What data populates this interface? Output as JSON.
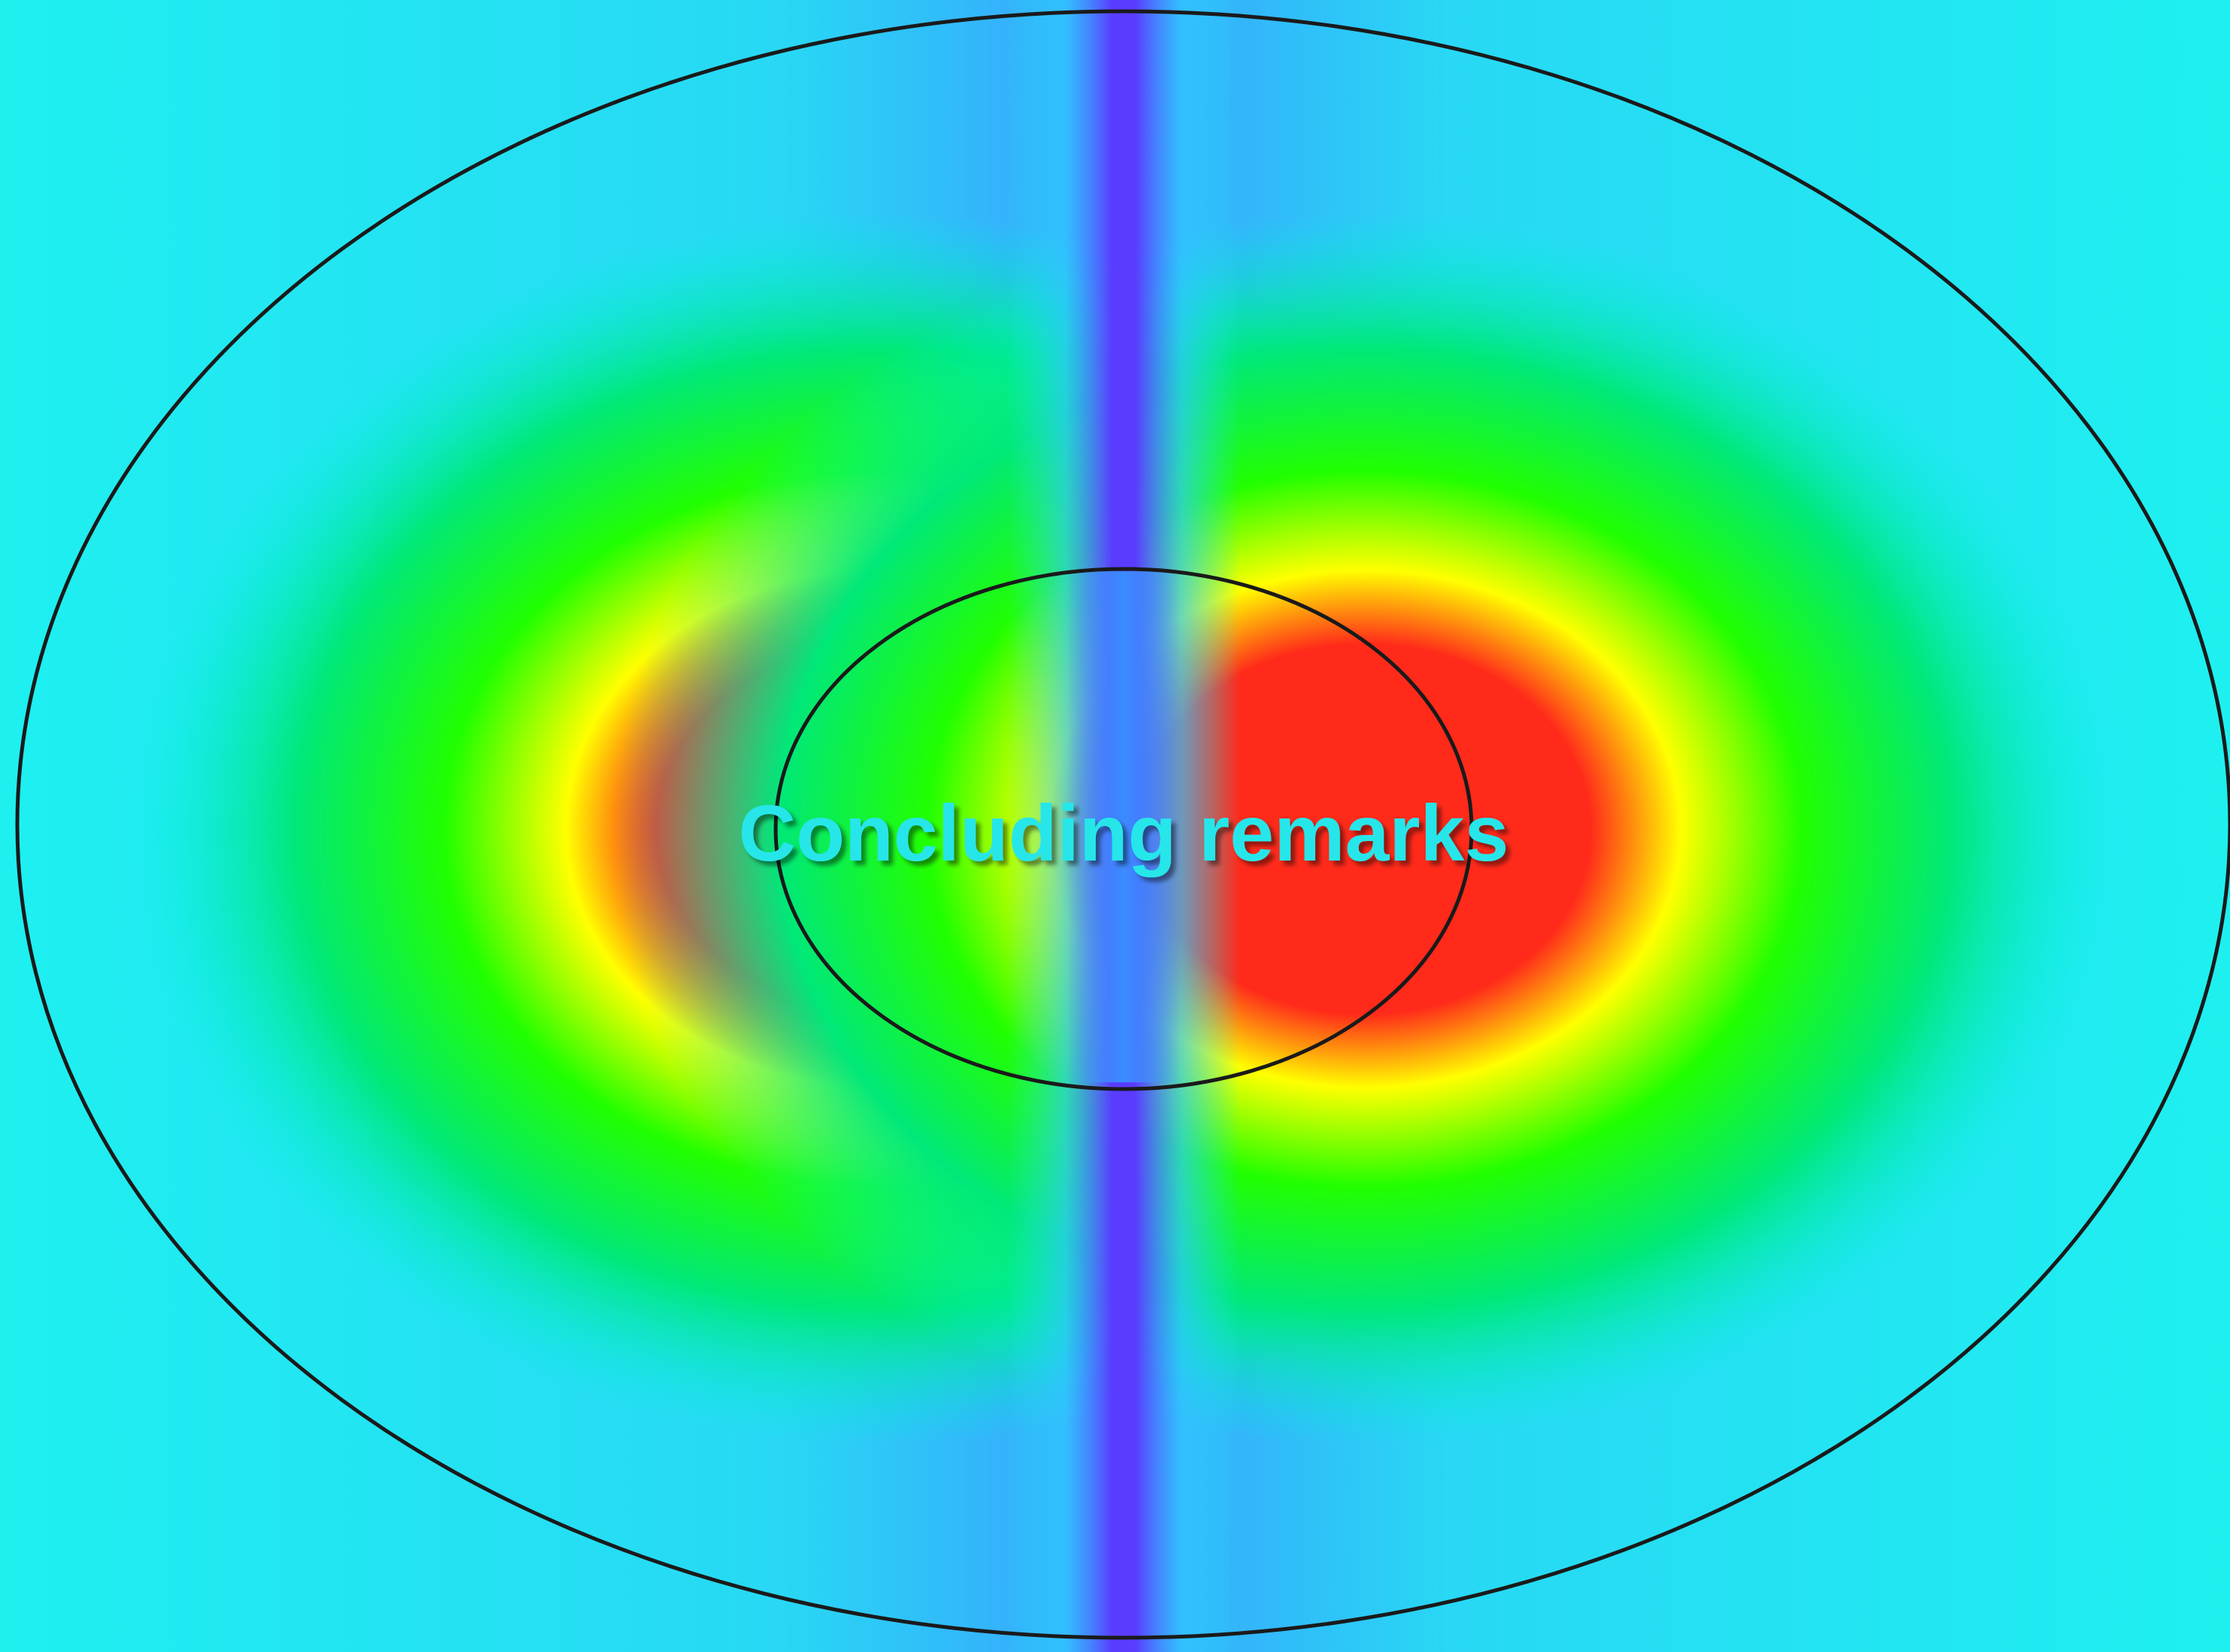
{
  "slide": {
    "title": "Concluding remarks"
  }
}
